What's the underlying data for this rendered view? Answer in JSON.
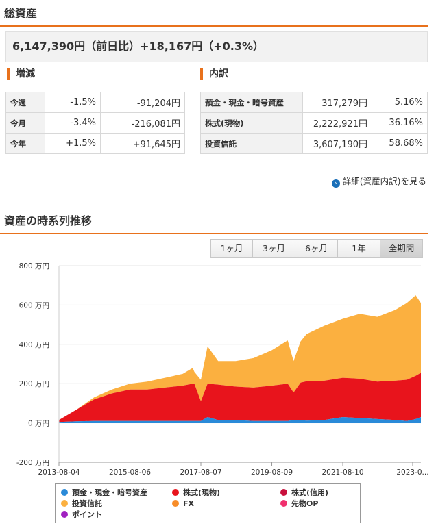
{
  "total": {
    "heading": "総資産",
    "summary": "6,147,390円（前日比）+18,167円（+0.3%）"
  },
  "change": {
    "heading": "増減",
    "rows": [
      {
        "label": "今週",
        "pct": "-1.5%",
        "amount": "-91,204円"
      },
      {
        "label": "今月",
        "pct": "-3.4%",
        "amount": "-216,081円"
      },
      {
        "label": "今年",
        "pct": "+1.5%",
        "amount": "+91,645円"
      }
    ]
  },
  "breakdown": {
    "heading": "内訳",
    "rows": [
      {
        "label": "預金・現金・暗号資産",
        "amount": "317,279円",
        "pct": "5.16%"
      },
      {
        "label": "株式(現物)",
        "amount": "2,222,921円",
        "pct": "36.16%"
      },
      {
        "label": "投資信託",
        "amount": "3,607,190円",
        "pct": "58.68%"
      }
    ],
    "detail_link": "詳細(資産内訳)を見る"
  },
  "timeseries": {
    "heading": "資産の時系列推移",
    "range_buttons": [
      "1ヶ月",
      "3ヶ月",
      "6ヶ月",
      "1年",
      "全期間"
    ],
    "active_button": "全期間"
  },
  "colors": {
    "accent": "#e8711c",
    "deposit": "#2a8ad8",
    "stock": "#e8141c",
    "margin": "#c8103c",
    "fund": "#fbb040",
    "fx": "#f78c28",
    "futures": "#f0306e",
    "point": "#a020c0"
  },
  "chart_data": {
    "type": "area",
    "stacked": true,
    "x": [
      "2013-08-04",
      "2014-02-01",
      "2014-08-01",
      "2015-02-01",
      "2015-08-06",
      "2016-02-01",
      "2016-08-01",
      "2017-02-01",
      "2017-05-15",
      "2017-06-01",
      "2017-08-07",
      "2017-10-15",
      "2018-02-01",
      "2018-08-01",
      "2019-02-01",
      "2019-08-09",
      "2020-01-20",
      "2020-03-20",
      "2020-06-01",
      "2020-08-01",
      "2021-02-01",
      "2021-08-10",
      "2022-02-01",
      "2022-08-01",
      "2023-02-01",
      "2023-06-01",
      "2023-09-01",
      "2023-10-25"
    ],
    "series": [
      {
        "name": "預金・現金・暗号資産",
        "values": [
          5,
          8,
          10,
          10,
          10,
          10,
          10,
          10,
          10,
          10,
          10,
          30,
          15,
          15,
          10,
          10,
          10,
          15,
          15,
          12,
          15,
          30,
          25,
          20,
          15,
          10,
          20,
          30
        ]
      },
      {
        "name": "株式(現物)",
        "values": [
          10,
          60,
          110,
          140,
          160,
          160,
          170,
          180,
          190,
          190,
          100,
          170,
          180,
          170,
          170,
          180,
          190,
          140,
          190,
          200,
          200,
          200,
          200,
          190,
          200,
          210,
          220,
          225
        ]
      },
      {
        "name": "株式(信用)",
        "values": [
          0,
          0,
          0,
          0,
          0,
          0,
          0,
          0,
          0,
          0,
          0,
          0,
          0,
          0,
          0,
          0,
          0,
          0,
          0,
          0,
          0,
          0,
          0,
          0,
          0,
          0,
          0,
          0
        ]
      },
      {
        "name": "投資信託",
        "values": [
          0,
          0,
          10,
          20,
          30,
          40,
          50,
          60,
          80,
          60,
          110,
          190,
          120,
          130,
          150,
          180,
          220,
          160,
          210,
          240,
          280,
          300,
          330,
          330,
          360,
          390,
          410,
          355
        ]
      },
      {
        "name": "FX",
        "values": [
          0,
          0,
          0,
          0,
          0,
          0,
          0,
          0,
          0,
          0,
          0,
          0,
          0,
          0,
          0,
          0,
          0,
          0,
          0,
          0,
          0,
          0,
          0,
          0,
          0,
          0,
          0,
          0
        ]
      },
      {
        "name": "先物OP",
        "values": [
          0,
          0,
          0,
          0,
          0,
          0,
          0,
          0,
          0,
          0,
          0,
          0,
          0,
          0,
          0,
          0,
          0,
          0,
          0,
          0,
          0,
          0,
          0,
          0,
          0,
          0,
          0,
          0
        ]
      },
      {
        "name": "ポイント",
        "values": [
          0,
          0,
          0,
          0,
          0,
          0,
          0,
          0,
          0,
          0,
          0,
          0,
          0,
          0,
          0,
          0,
          0,
          0,
          0,
          0,
          0,
          0,
          0,
          0,
          0,
          0,
          0,
          0
        ]
      }
    ],
    "ylim": [
      -200,
      800
    ],
    "yticks": [
      "800 万円",
      "600 万円",
      "400 万円",
      "200 万円",
      "0 万円",
      "-200 万円"
    ],
    "ytick_values": [
      800,
      600,
      400,
      200,
      0,
      -200
    ],
    "xticks": [
      "2013-08-04",
      "2015-08-06",
      "2017-08-07",
      "2019-08-09",
      "2021-08-10",
      "2023-0..."
    ],
    "xtick_dates": [
      "2013-08-04",
      "2015-08-06",
      "2017-08-07",
      "2019-08-09",
      "2021-08-10",
      "2023-08-01"
    ],
    "grid": true,
    "legend_position": "bottom"
  }
}
